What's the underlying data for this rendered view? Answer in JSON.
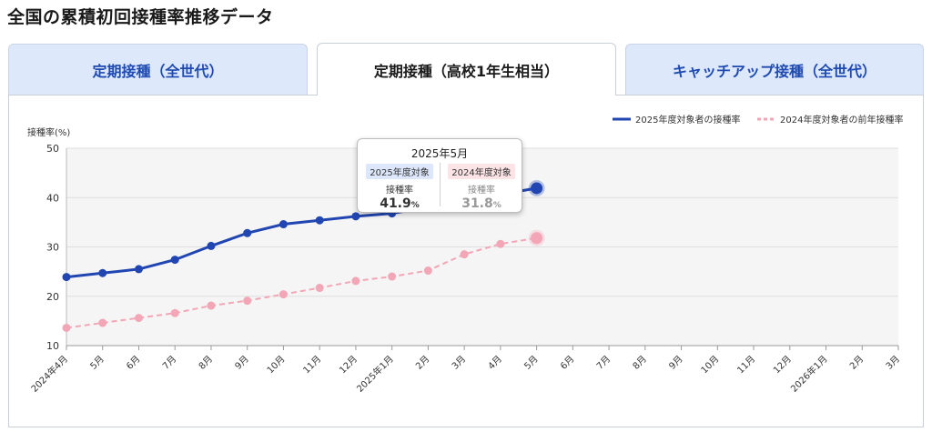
{
  "page_title": "全国の累積初回接種率推移データ",
  "tabs": [
    {
      "label": "定期接種（全世代）",
      "active": false
    },
    {
      "label": "定期接種（高校1年生相当）",
      "active": true
    },
    {
      "label": "キャッチアップ接種（全世代）",
      "active": false
    }
  ],
  "colors": {
    "current": "#2146b2",
    "previous": "#f3a6b6",
    "plot_bg": "#f5f5f5",
    "tab_inactive_bg": "#dde8fb",
    "tab_inactive_text": "#1f4bb0"
  },
  "tooltip": {
    "title": "2025年5月",
    "current_badge": "2025年度対象",
    "previous_badge": "2024年度対象",
    "current_label": "接種率",
    "previous_label": "接種率",
    "current_value": "41.9",
    "previous_value": "31.8",
    "unit": "%"
  },
  "chart_data": {
    "type": "line",
    "ylabel": "接種率(%)",
    "ylim": [
      10,
      50
    ],
    "yticks": [
      10,
      20,
      30,
      40,
      50
    ],
    "grid": true,
    "legend_position": "top-right",
    "categories": [
      "2024年4月",
      "5月",
      "6月",
      "7月",
      "8月",
      "9月",
      "10月",
      "11月",
      "12月",
      "2025年1月",
      "2月",
      "3月",
      "4月",
      "5月",
      "6月",
      "7月",
      "8月",
      "9月",
      "10月",
      "11月",
      "12月",
      "2026年1月",
      "2月",
      "3月"
    ],
    "series": [
      {
        "name": "2025年度対象者の接種率",
        "style": "solid",
        "values": [
          23.9,
          24.7,
          25.5,
          27.4,
          30.2,
          32.8,
          34.6,
          35.4,
          36.2,
          36.8,
          null,
          null,
          null,
          41.9,
          null,
          null,
          null,
          null,
          null,
          null,
          null,
          null,
          null,
          null
        ]
      },
      {
        "name": "2024年度対象者の前年接種率",
        "style": "dashed",
        "values": [
          13.6,
          14.6,
          15.6,
          16.6,
          18.1,
          19.1,
          20.4,
          21.7,
          23.1,
          24.0,
          25.2,
          28.5,
          30.6,
          31.8,
          null,
          null,
          null,
          null,
          null,
          null,
          null,
          null,
          null,
          null
        ]
      }
    ]
  }
}
